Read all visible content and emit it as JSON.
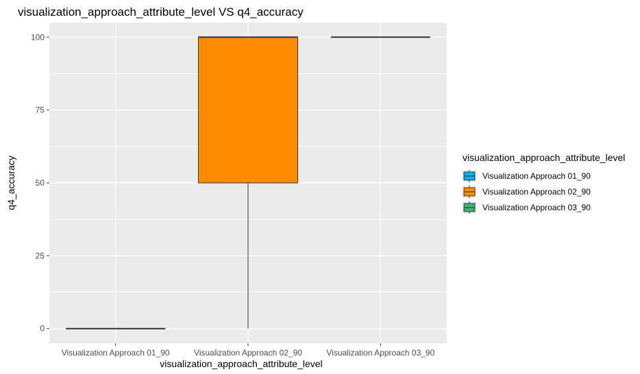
{
  "chart_data": {
    "type": "boxplot",
    "title": "visualization_approach_attribute_level VS q4_accuracy",
    "xlabel": "visualization_approach_attribute_level",
    "ylabel": "q4_accuracy",
    "ylim": [
      -5,
      105
    ],
    "yticks": [
      0,
      25,
      50,
      75,
      100
    ],
    "yticklabels": [
      "0",
      "25",
      "50",
      "75",
      "100"
    ],
    "categories": [
      "Visualization Approach 01_90",
      "Visualization Approach 02_90",
      "Visualization Approach 03_90"
    ],
    "boxes": [
      {
        "category": "Visualization Approach 01_90",
        "min": 0,
        "q1": 0,
        "median": 0,
        "q3": 0,
        "max": 0,
        "color": "#00b0f0"
      },
      {
        "category": "Visualization Approach 02_90",
        "min": 0,
        "q1": 50,
        "median": 100,
        "q3": 100,
        "max": 100,
        "color": "#ff8c00"
      },
      {
        "category": "Visualization Approach 03_90",
        "min": 100,
        "q1": 100,
        "median": 100,
        "q3": 100,
        "max": 100,
        "color": "#3cb371"
      }
    ],
    "legend": {
      "title": "visualization_approach_attribute_level",
      "position": "right",
      "entries": [
        {
          "label": "Visualization Approach 01_90",
          "color": "#00b0f0"
        },
        {
          "label": "Visualization Approach 02_90",
          "color": "#ff8c00"
        },
        {
          "label": "Visualization Approach 03_90",
          "color": "#3cb371"
        }
      ]
    },
    "grid": true,
    "panel_background": "#ebebeb",
    "grid_color": "#ffffff"
  }
}
